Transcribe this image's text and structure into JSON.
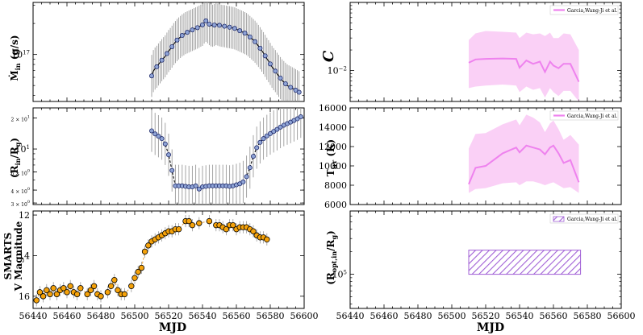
{
  "colors": {
    "mdot_marker": "#8fa4d6",
    "mdot_edge": "#1f2a6b",
    "errorbar": "#9a9a9a",
    "fit_line": "#000000",
    "smarts_marker": "#f5a20a",
    "smarts_line": "#e8a640",
    "pink_line": "#ee82ee",
    "pink_fill": "#f9c8f4",
    "hatch": "#a05fd6"
  },
  "chart_data": [
    {
      "id": "mdot",
      "type": "scatter",
      "panel": "left-top",
      "ylabel": "Ṁin (g/s)",
      "yscale": "log",
      "ylim": [
        3.5e+16,
        3.2e+17
      ],
      "xlim": [
        56440,
        56600
      ],
      "yticks": [
        {
          "v": 1e+17,
          "label": "10",
          "sup": "17"
        }
      ],
      "x": [
        56510,
        56511,
        56512,
        56513,
        56514,
        56515,
        56516,
        56517,
        56518,
        56519,
        56520,
        56521,
        56522,
        56523,
        56524,
        56525,
        56526,
        56527,
        56528,
        56529,
        56530,
        56531,
        56532,
        56533,
        56534,
        56535,
        56536,
        56537,
        56538,
        56539,
        56540,
        56541,
        56542,
        56543,
        56544,
        56545,
        56546,
        56547,
        56548,
        56549,
        56550,
        56551,
        56552,
        56553,
        56554,
        56555,
        56556,
        56557,
        56558,
        56559,
        56560,
        56561,
        56562,
        56563,
        56564,
        56565,
        56566,
        56567,
        56568,
        56569,
        56570,
        56571,
        56572,
        56573,
        56574,
        56575,
        56576,
        56577,
        56578,
        56579,
        56580,
        56581,
        56582,
        56583,
        56584,
        56585,
        56586,
        56587,
        56588,
        56589,
        56590,
        56591,
        56592,
        56593,
        56594,
        56595,
        56596,
        56597
      ],
      "y": [
        6.2e+16,
        6.9e+16,
        7.3e+16,
        7.6e+16,
        8e+16,
        8.4e+16,
        8.8e+16,
        9.2e+16,
        9.6e+16,
        1.02e+17,
        1.08e+17,
        1.13e+17,
        1.19e+17,
        1.26e+17,
        1.32e+17,
        1.38e+17,
        1.43e+17,
        1.48e+17,
        1.53e+17,
        1.57e+17,
        1.61e+17,
        1.64e+17,
        1.67e+17,
        1.7e+17,
        1.73e+17,
        1.76e+17,
        1.79e+17,
        1.82e+17,
        1.86e+17,
        1.9e+17,
        1.94e+17,
        2.04e+17,
        2.12e+17,
        2.05e+17,
        1.97e+17,
        1.92e+17,
        1.9e+17,
        1.93e+17,
        1.97e+17,
        1.95e+17,
        1.92e+17,
        1.9e+17,
        1.89e+17,
        1.88e+17,
        1.86e+17,
        1.85e+17,
        1.84e+17,
        1.82e+17,
        1.81e+17,
        1.79e+17,
        1.76e+17,
        1.73e+17,
        1.7e+17,
        1.67e+17,
        1.64e+17,
        1.61e+17,
        1.58e+17,
        1.53e+17,
        1.48e+17,
        1.43e+17,
        1.38e+17,
        1.33e+17,
        1.27e+17,
        1.21e+17,
        1.15e+17,
        1.09e+17,
        1.03e+17,
        9.7e+16,
        9.1e+16,
        8.6e+16,
        8.1e+16,
        7.6e+16,
        7.2e+16,
        6.9e+16,
        6.5e+16,
        6.2e+16,
        5.9e+16,
        5.6e+16,
        5.4e+16,
        5.2e+16,
        5e+16,
        4.9e+16,
        4.8e+16,
        4.7e+16,
        4.6e+16,
        4.5e+16,
        4.4e+16,
        4.3e+16
      ],
      "yerr_factor": 1.6,
      "markers_x": [
        56510,
        56513,
        56516,
        56519,
        56522,
        56525,
        56528,
        56531,
        56534,
        56537,
        56540,
        56542,
        56544,
        56547,
        56550,
        56553,
        56556,
        56559,
        56562,
        56565,
        56568,
        56571,
        56574,
        56577,
        56580,
        56583,
        56586,
        56589,
        56592,
        56595,
        56597
      ]
    },
    {
      "id": "rin",
      "type": "scatter",
      "panel": "left-middle",
      "ylabel": "(Rin/Rg)",
      "yscale": "log",
      "ylim": [
        2.9,
        25
      ],
      "xlim": [
        56440,
        56600
      ],
      "yticks": [
        {
          "v": 20,
          "label": "2 × 10",
          "sup": "1",
          "small": true
        },
        {
          "v": 10,
          "label": "10",
          "sup": "1",
          "small": false
        },
        {
          "v": 6,
          "label": "6 × 10",
          "sup": "0",
          "small": true
        },
        {
          "v": 4,
          "label": "4 × 10",
          "sup": "0",
          "small": true
        },
        {
          "v": 3,
          "label": "3 × 10",
          "sup": "0",
          "small": true
        }
      ],
      "x": [
        56510,
        56512,
        56514,
        56516,
        56518,
        56520,
        56522,
        56524,
        56526,
        56528,
        56530,
        56532,
        56534,
        56536,
        56538,
        56540,
        56542,
        56544,
        56546,
        56548,
        56550,
        56552,
        56554,
        56556,
        56558,
        56560,
        56562,
        56564,
        56566,
        56568,
        56570,
        56572,
        56574,
        56576,
        56578,
        56580,
        56582,
        56584,
        56586,
        56588,
        56590,
        56592,
        56594,
        56596,
        56598
      ],
      "y": [
        15.0,
        14.0,
        13.3,
        12.6,
        11.2,
        8.8,
        6.2,
        4.4,
        4.4,
        4.4,
        4.35,
        4.3,
        4.3,
        4.4,
        4.1,
        4.3,
        4.35,
        4.4,
        4.4,
        4.4,
        4.4,
        4.4,
        4.4,
        4.35,
        4.4,
        4.5,
        4.6,
        4.8,
        5.4,
        6.6,
        8.5,
        10.3,
        11.6,
        12.6,
        13.4,
        14.1,
        14.8,
        15.5,
        16.3,
        17.0,
        17.6,
        18.2,
        18.9,
        19.6,
        20.5
      ],
      "yerr_factor": 1.6
    },
    {
      "id": "smarts",
      "type": "scatter",
      "panel": "left-bottom",
      "ylabel_line1": "SMARTS",
      "ylabel_line2": "V Magnitude",
      "xlabel": "MJD",
      "ylim": [
        16.6,
        11.8
      ],
      "xlim": [
        56440,
        56600
      ],
      "yticks": [
        12,
        14,
        16
      ],
      "xticks": [
        56440,
        56460,
        56480,
        56500,
        56520,
        56540,
        56560,
        56580,
        56600
      ],
      "x": [
        56442,
        56444,
        56446,
        56448,
        56450,
        56452,
        56454,
        56456,
        56458,
        56460,
        56462,
        56464,
        56466,
        56468,
        56472,
        56474,
        56476,
        56478,
        56480,
        56484,
        56486,
        56488,
        56490,
        56492,
        56494,
        56498,
        56500,
        56502,
        56504,
        56506,
        56508,
        56510,
        56512,
        56514,
        56516,
        56518,
        56520,
        56522,
        56524,
        56526,
        56530,
        56532,
        56534,
        56538,
        56544,
        56548,
        56550,
        56552,
        56554,
        56556,
        56558,
        56560,
        56562,
        56564,
        56566,
        56568,
        56570,
        56572,
        56574,
        56576,
        56578
      ],
      "y": [
        16.2,
        15.8,
        16.0,
        15.7,
        15.9,
        15.6,
        15.9,
        15.7,
        15.6,
        15.8,
        15.5,
        15.8,
        15.9,
        15.6,
        15.9,
        15.7,
        15.5,
        15.9,
        16.0,
        15.8,
        15.5,
        15.2,
        15.7,
        15.9,
        15.9,
        15.5,
        15.1,
        14.8,
        14.6,
        13.8,
        13.5,
        13.3,
        13.2,
        13.1,
        13.0,
        12.9,
        12.8,
        12.8,
        12.7,
        12.7,
        12.3,
        12.3,
        12.5,
        12.4,
        12.3,
        12.5,
        12.5,
        12.6,
        12.7,
        12.5,
        12.5,
        12.7,
        12.6,
        12.6,
        12.6,
        12.7,
        12.8,
        13.0,
        13.1,
        13.1,
        13.2
      ]
    },
    {
      "id": "cout",
      "type": "area",
      "panel": "right-top",
      "ylabel": "C",
      "yscale": "log",
      "ylim": [
        0.0035,
        0.1
      ],
      "xlim": [
        56440,
        56600
      ],
      "yticks": [
        {
          "v": 0.01,
          "label": "10",
          "sup": "−2"
        }
      ],
      "legend": "Garcia,Wang-Ji et al.",
      "legend_position": "top-right",
      "x": [
        56510,
        56514,
        56520,
        56530,
        56538,
        56540,
        56544,
        56548,
        56552,
        56555,
        56558,
        56560,
        56563,
        56566,
        56570,
        56575
      ],
      "y": [
        0.013,
        0.0145,
        0.0148,
        0.015,
        0.0148,
        0.011,
        0.014,
        0.0125,
        0.0135,
        0.0095,
        0.0135,
        0.0118,
        0.0108,
        0.0125,
        0.0125,
        0.0068
      ],
      "upper": [
        0.028,
        0.035,
        0.038,
        0.037,
        0.036,
        0.03,
        0.036,
        0.034,
        0.035,
        0.032,
        0.036,
        0.03,
        0.03,
        0.035,
        0.034,
        0.02
      ],
      "lower": [
        0.0055,
        0.0058,
        0.006,
        0.0062,
        0.006,
        0.0048,
        0.0058,
        0.0052,
        0.0055,
        0.004,
        0.0055,
        0.0048,
        0.0042,
        0.005,
        0.005,
        0.0035
      ]
    },
    {
      "id": "tirr",
      "type": "area",
      "panel": "right-middle",
      "ylabel": "Tirr (K)",
      "ylim": [
        6000,
        16000
      ],
      "xlim": [
        56440,
        56600
      ],
      "yticks": [
        6000,
        8000,
        10000,
        12000,
        14000,
        16000
      ],
      "legend": "Garcia,Wang-Ji et al.",
      "legend_position": "top-right",
      "x": [
        56510,
        56514,
        56520,
        56530,
        56538,
        56540,
        56544,
        56548,
        56552,
        56555,
        56558,
        56560,
        56563,
        56566,
        56570,
        56575
      ],
      "y": [
        8100,
        9800,
        10000,
        11300,
        11900,
        11400,
        12100,
        11900,
        11700,
        11200,
        11900,
        12100,
        11300,
        10300,
        10600,
        8300
      ],
      "upper": [
        11800,
        13300,
        13400,
        14300,
        14800,
        14200,
        15300,
        15000,
        14500,
        13500,
        14400,
        14700,
        13800,
        12700,
        13200,
        12200
      ],
      "lower": [
        7200,
        7600,
        7700,
        8200,
        8300,
        8000,
        8400,
        8400,
        8200,
        8000,
        8200,
        8300,
        8000,
        7700,
        7800,
        7200
      ]
    },
    {
      "id": "roptin",
      "type": "area",
      "panel": "right-bottom",
      "ylabel": "(Ropt,in/Rg)",
      "yscale": "log",
      "xlabel": "MJD",
      "ylim": [
        35000,
        700000
      ],
      "xlim": [
        56440,
        56600
      ],
      "yticks": [
        {
          "v": 100000,
          "label": "10",
          "sup": "5"
        }
      ],
      "xticks": [
        56440,
        56460,
        56480,
        56500,
        56520,
        56540,
        56560,
        56580,
        56600
      ],
      "legend": "Garcia,Wang-Ji et al.",
      "legend_position": "top-right",
      "region": {
        "x0": 56510,
        "x1": 56576,
        "y0": 100000,
        "y1": 210000
      }
    }
  ]
}
